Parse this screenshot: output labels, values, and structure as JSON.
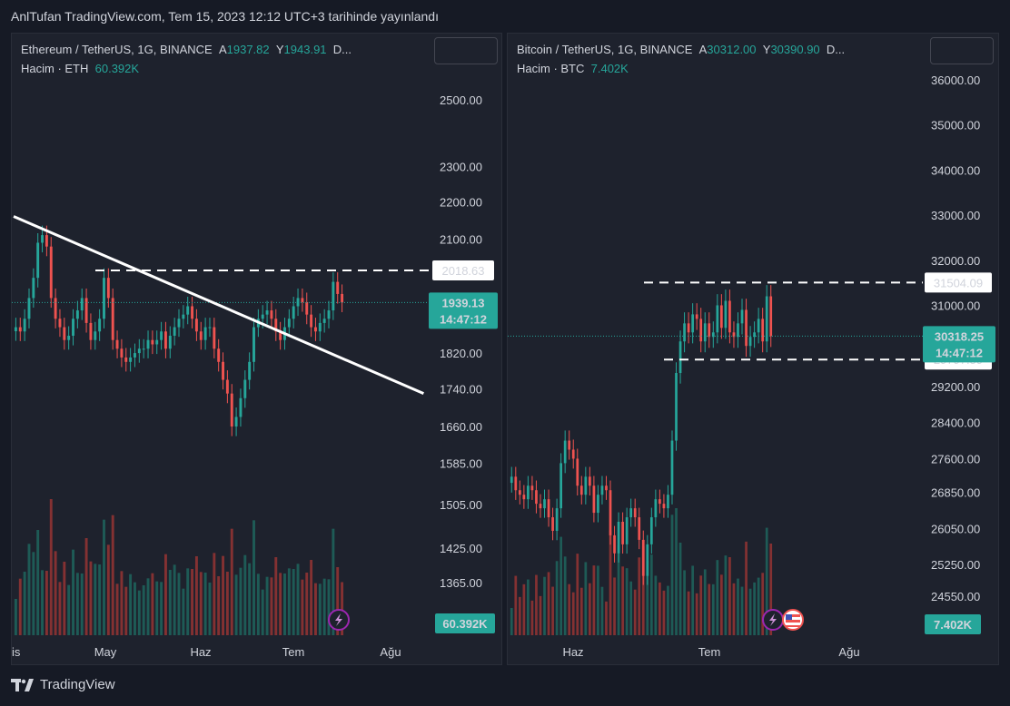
{
  "header": {
    "note": "AnlTufan TradingView.com, Tem 15, 2023 12:12 UTC+3 tarihinde yayınlandı"
  },
  "footer": {
    "brand": "TradingView"
  },
  "colors": {
    "up": "#26a69a",
    "down": "#ef5350",
    "bg": "#1e222d",
    "grid": "#2a2e39"
  },
  "panels": {
    "eth": {
      "symbol": "Ethereum / TetherUS, 1G, BINANCE",
      "open_label": "A",
      "open_value": "1937.82",
      "high_label": "Y",
      "high_value": "1943.91",
      "more": "D...",
      "volume_label": "Hacim · ETH",
      "volume_value": "60.392K"
    },
    "btc": {
      "symbol": "Bitcoin / TetherUS, 1G, BINANCE",
      "open_label": "A",
      "open_value": "30312.00",
      "high_label": "Y",
      "high_value": "30390.90",
      "more": "D...",
      "volume_label": "Hacim · BTC",
      "volume_value": "7.402K"
    }
  },
  "chart_data": [
    {
      "type": "candlestick",
      "title": "Ethereum / TetherUS, 1G, BINANCE",
      "y_scale": "log",
      "y_ticks": [
        "2500.00",
        "2300.00",
        "2200.00",
        "2100.00",
        "1820.00",
        "1740.00",
        "1660.00",
        "1585.00",
        "1505.00",
        "1425.00",
        "1365.00"
      ],
      "x_ticks": [
        "is",
        "May",
        "Haz",
        "Tem",
        "Ağu"
      ],
      "last_price": "1939.13",
      "countdown": "14:47:12",
      "marked_level": "2018.63",
      "volume_last": "60.392K",
      "close_series_approx": [
        1880,
        1870,
        1900,
        1950,
        2000,
        2090,
        2110,
        2080,
        1950,
        1900,
        1880,
        1850,
        1860,
        1900,
        1920,
        1950,
        1890,
        1850,
        1870,
        1900,
        2000,
        1950,
        1850,
        1830,
        1810,
        1800,
        1810,
        1820,
        1830,
        1830,
        1850,
        1840,
        1850,
        1870,
        1830,
        1860,
        1880,
        1900,
        1910,
        1930,
        1900,
        1870,
        1850,
        1880,
        1880,
        1830,
        1800,
        1760,
        1730,
        1660,
        1680,
        1720,
        1760,
        1800,
        1880,
        1900,
        1910,
        1920,
        1900,
        1870,
        1850,
        1880,
        1900,
        1930,
        1950,
        1940,
        1910,
        1880,
        1870,
        1890,
        1900,
        1920,
        1990,
        1960,
        1939
      ],
      "trendline": [
        {
          "x_index": 0,
          "price": 2160
        },
        {
          "x_index": 93,
          "price": 1730
        }
      ]
    },
    {
      "type": "candlestick",
      "title": "Bitcoin / TetherUS, 1G, BINANCE",
      "y_ticks": [
        "36000.00",
        "35000.00",
        "34000.00",
        "33000.00",
        "32000.00",
        "31000.00",
        "29200.00",
        "28400.00",
        "27600.00",
        "26850.00",
        "26050.00",
        "25250.00",
        "24550.00"
      ],
      "x_ticks": [
        "Haz",
        "Tem",
        "Ağu"
      ],
      "last_price": "30318.25",
      "countdown": "14:47:12",
      "resistance": "31504.09",
      "support": "29797.59",
      "volume_last": "7.402K",
      "close_series_approx": [
        27200,
        26900,
        26800,
        26700,
        27000,
        26900,
        26600,
        26500,
        26700,
        26300,
        26000,
        26500,
        27500,
        28000,
        27800,
        27600,
        27000,
        26800,
        27200,
        27000,
        26400,
        26800,
        27000,
        26900,
        25900,
        25500,
        26200,
        25700,
        26300,
        26500,
        26300,
        25800,
        25000,
        25700,
        26300,
        26700,
        26600,
        26500,
        26800,
        28000,
        29500,
        30200,
        30600,
        30400,
        30800,
        30700,
        30200,
        30600,
        30300,
        30400,
        31000,
        30500,
        31100,
        30400,
        30300,
        30600,
        30900,
        30100,
        30300,
        30400,
        30700,
        30200,
        31200,
        30318
      ]
    }
  ]
}
